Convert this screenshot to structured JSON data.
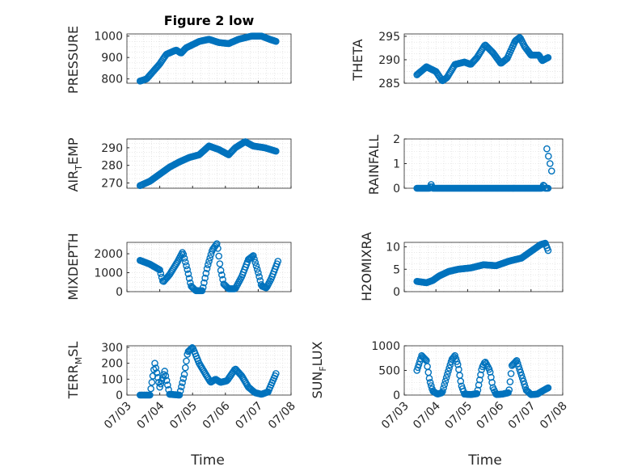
{
  "colors": {
    "marker": "#0072BD",
    "axis": "#262626",
    "grid": "#d9d9d9"
  },
  "x_axis": {
    "label": "Time",
    "ticks": [
      0,
      1,
      2,
      3,
      4,
      5
    ],
    "tick_labels": [
      "07/03",
      "07/04",
      "07/05",
      "07/06",
      "07/07",
      "07/08"
    ],
    "range": [
      0,
      5
    ]
  },
  "chart_data": [
    {
      "type": "scatter",
      "title": "Figure 2 low",
      "ylabel": "PRESSURE",
      "ylim": [
        780,
        1010
      ],
      "yticks": [
        800,
        900,
        1000
      ],
      "grid": true,
      "keys": [
        [
          0.4,
          790
        ],
        [
          0.6,
          800
        ],
        [
          0.8,
          835
        ],
        [
          1.0,
          870
        ],
        [
          1.2,
          915
        ],
        [
          1.5,
          935
        ],
        [
          1.65,
          920
        ],
        [
          1.8,
          945
        ],
        [
          2.2,
          975
        ],
        [
          2.5,
          985
        ],
        [
          2.8,
          970
        ],
        [
          3.1,
          965
        ],
        [
          3.4,
          985
        ],
        [
          3.8,
          1000
        ],
        [
          4.1,
          1000
        ],
        [
          4.35,
          985
        ],
        [
          4.55,
          975
        ]
      ]
    },
    {
      "type": "scatter",
      "title": "",
      "ylabel": "THETA",
      "ylim": [
        285,
        295.5
      ],
      "yticks": [
        285,
        290,
        295
      ],
      "grid": true,
      "keys": [
        [
          0.4,
          286.8
        ],
        [
          0.7,
          288.5
        ],
        [
          1.0,
          287.5
        ],
        [
          1.2,
          285.5
        ],
        [
          1.35,
          286.2
        ],
        [
          1.6,
          289.0
        ],
        [
          1.9,
          289.5
        ],
        [
          2.1,
          289.0
        ],
        [
          2.3,
          290.5
        ],
        [
          2.55,
          293.2
        ],
        [
          2.8,
          291.5
        ],
        [
          3.05,
          289.2
        ],
        [
          3.25,
          290.3
        ],
        [
          3.5,
          294.0
        ],
        [
          3.65,
          294.8
        ],
        [
          3.8,
          292.8
        ],
        [
          4.0,
          291.0
        ],
        [
          4.25,
          291.0
        ],
        [
          4.35,
          289.8
        ],
        [
          4.55,
          290.5
        ]
      ]
    },
    {
      "type": "scatter",
      "title": "",
      "ylabel": "AIR_TEMP",
      "ylim": [
        267,
        295
      ],
      "yticks": [
        270,
        280,
        290
      ],
      "grid": true,
      "keys": [
        [
          0.4,
          268.5
        ],
        [
          0.7,
          271
        ],
        [
          1.0,
          275
        ],
        [
          1.3,
          279
        ],
        [
          1.6,
          282
        ],
        [
          1.9,
          284.5
        ],
        [
          2.2,
          286
        ],
        [
          2.5,
          291
        ],
        [
          2.8,
          289
        ],
        [
          3.1,
          286
        ],
        [
          3.3,
          290
        ],
        [
          3.6,
          293.5
        ],
        [
          3.85,
          291
        ],
        [
          4.2,
          290
        ],
        [
          4.55,
          288
        ]
      ]
    },
    {
      "type": "scatter",
      "title": "",
      "ylabel": "RAINFALL",
      "ylim": [
        0,
        2
      ],
      "yticks": [
        0,
        1,
        2
      ],
      "grid": true,
      "keys": [
        [
          0.4,
          0
        ],
        [
          0.8,
          0
        ],
        [
          0.85,
          0.15
        ],
        [
          0.9,
          0
        ],
        [
          4.35,
          0
        ],
        [
          4.4,
          0.15
        ],
        [
          4.45,
          0
        ],
        [
          4.5,
          0
        ],
        [
          4.55,
          0
        ]
      ],
      "points_extra": [
        [
          4.5,
          1.6
        ],
        [
          4.55,
          1.3
        ],
        [
          4.6,
          1.0
        ],
        [
          4.65,
          0.7
        ]
      ]
    },
    {
      "type": "scatter",
      "title": "",
      "ylabel": "MIXDEPTH",
      "ylim": [
        0,
        2600
      ],
      "yticks": [
        0,
        1000,
        2000
      ],
      "grid": true,
      "keys": [
        [
          0.4,
          1650
        ],
        [
          0.7,
          1450
        ],
        [
          1.0,
          1150
        ],
        [
          1.1,
          500
        ],
        [
          1.3,
          900
        ],
        [
          1.55,
          1600
        ],
        [
          1.7,
          2100
        ],
        [
          1.85,
          1100
        ],
        [
          1.95,
          300
        ],
        [
          2.1,
          50
        ],
        [
          2.3,
          50
        ],
        [
          2.45,
          1300
        ],
        [
          2.6,
          2200
        ],
        [
          2.75,
          2550
        ],
        [
          2.85,
          1200
        ],
        [
          2.95,
          400
        ],
        [
          3.1,
          150
        ],
        [
          3.3,
          150
        ],
        [
          3.5,
          800
        ],
        [
          3.7,
          1700
        ],
        [
          3.85,
          1900
        ],
        [
          4.0,
          1000
        ],
        [
          4.1,
          300
        ],
        [
          4.25,
          200
        ],
        [
          4.4,
          700
        ],
        [
          4.6,
          1600
        ]
      ]
    },
    {
      "type": "scatter",
      "title": "",
      "ylabel": "H2OMIXRA",
      "ylim": [
        0,
        11
      ],
      "yticks": [
        0,
        5,
        10
      ],
      "grid": true,
      "keys": [
        [
          0.4,
          2.3
        ],
        [
          0.7,
          2.0
        ],
        [
          0.9,
          2.5
        ],
        [
          1.1,
          3.5
        ],
        [
          1.4,
          4.5
        ],
        [
          1.7,
          5.0
        ],
        [
          2.1,
          5.3
        ],
        [
          2.5,
          6.0
        ],
        [
          2.9,
          5.8
        ],
        [
          3.3,
          6.8
        ],
        [
          3.7,
          7.5
        ],
        [
          4.0,
          9.0
        ],
        [
          4.3,
          10.5
        ],
        [
          4.45,
          10.8
        ],
        [
          4.55,
          9.0
        ]
      ]
    },
    {
      "type": "scatter",
      "title": "",
      "ylabel": "TERR_MSL",
      "ylim": [
        0,
        310
      ],
      "yticks": [
        0,
        100,
        200,
        300
      ],
      "grid": true,
      "keys": [
        [
          0.4,
          0
        ],
        [
          0.7,
          0
        ],
        [
          0.85,
          200
        ],
        [
          1.0,
          50
        ],
        [
          1.15,
          150
        ],
        [
          1.3,
          5
        ],
        [
          1.6,
          0
        ],
        [
          1.75,
          130
        ],
        [
          1.85,
          270
        ],
        [
          2.0,
          300
        ],
        [
          2.2,
          200
        ],
        [
          2.4,
          130
        ],
        [
          2.55,
          80
        ],
        [
          2.7,
          100
        ],
        [
          2.85,
          80
        ],
        [
          3.05,
          90
        ],
        [
          3.3,
          165
        ],
        [
          3.5,
          120
        ],
        [
          3.7,
          50
        ],
        [
          3.9,
          15
        ],
        [
          4.1,
          5
        ],
        [
          4.3,
          20
        ],
        [
          4.55,
          140
        ]
      ]
    },
    {
      "type": "scatter",
      "title": "",
      "ylabel": "SUN_FLUX",
      "ylim": [
        0,
        1000
      ],
      "yticks": [
        0,
        500,
        1000
      ],
      "grid": true,
      "keys": [
        [
          0.4,
          500
        ],
        [
          0.55,
          800
        ],
        [
          0.7,
          700
        ],
        [
          0.8,
          300
        ],
        [
          0.9,
          80
        ],
        [
          1.05,
          20
        ],
        [
          1.2,
          50
        ],
        [
          1.35,
          400
        ],
        [
          1.5,
          720
        ],
        [
          1.6,
          800
        ],
        [
          1.7,
          600
        ],
        [
          1.8,
          200
        ],
        [
          1.9,
          20
        ],
        [
          2.1,
          10
        ],
        [
          2.3,
          30
        ],
        [
          2.45,
          550
        ],
        [
          2.55,
          680
        ],
        [
          2.7,
          500
        ],
        [
          2.8,
          150
        ],
        [
          2.9,
          10
        ],
        [
          3.1,
          20
        ],
        [
          3.3,
          50
        ],
        [
          3.4,
          600
        ],
        [
          3.55,
          700
        ],
        [
          3.7,
          400
        ],
        [
          3.85,
          100
        ],
        [
          4.0,
          10
        ],
        [
          4.2,
          20
        ],
        [
          4.35,
          80
        ],
        [
          4.55,
          150
        ]
      ]
    }
  ]
}
